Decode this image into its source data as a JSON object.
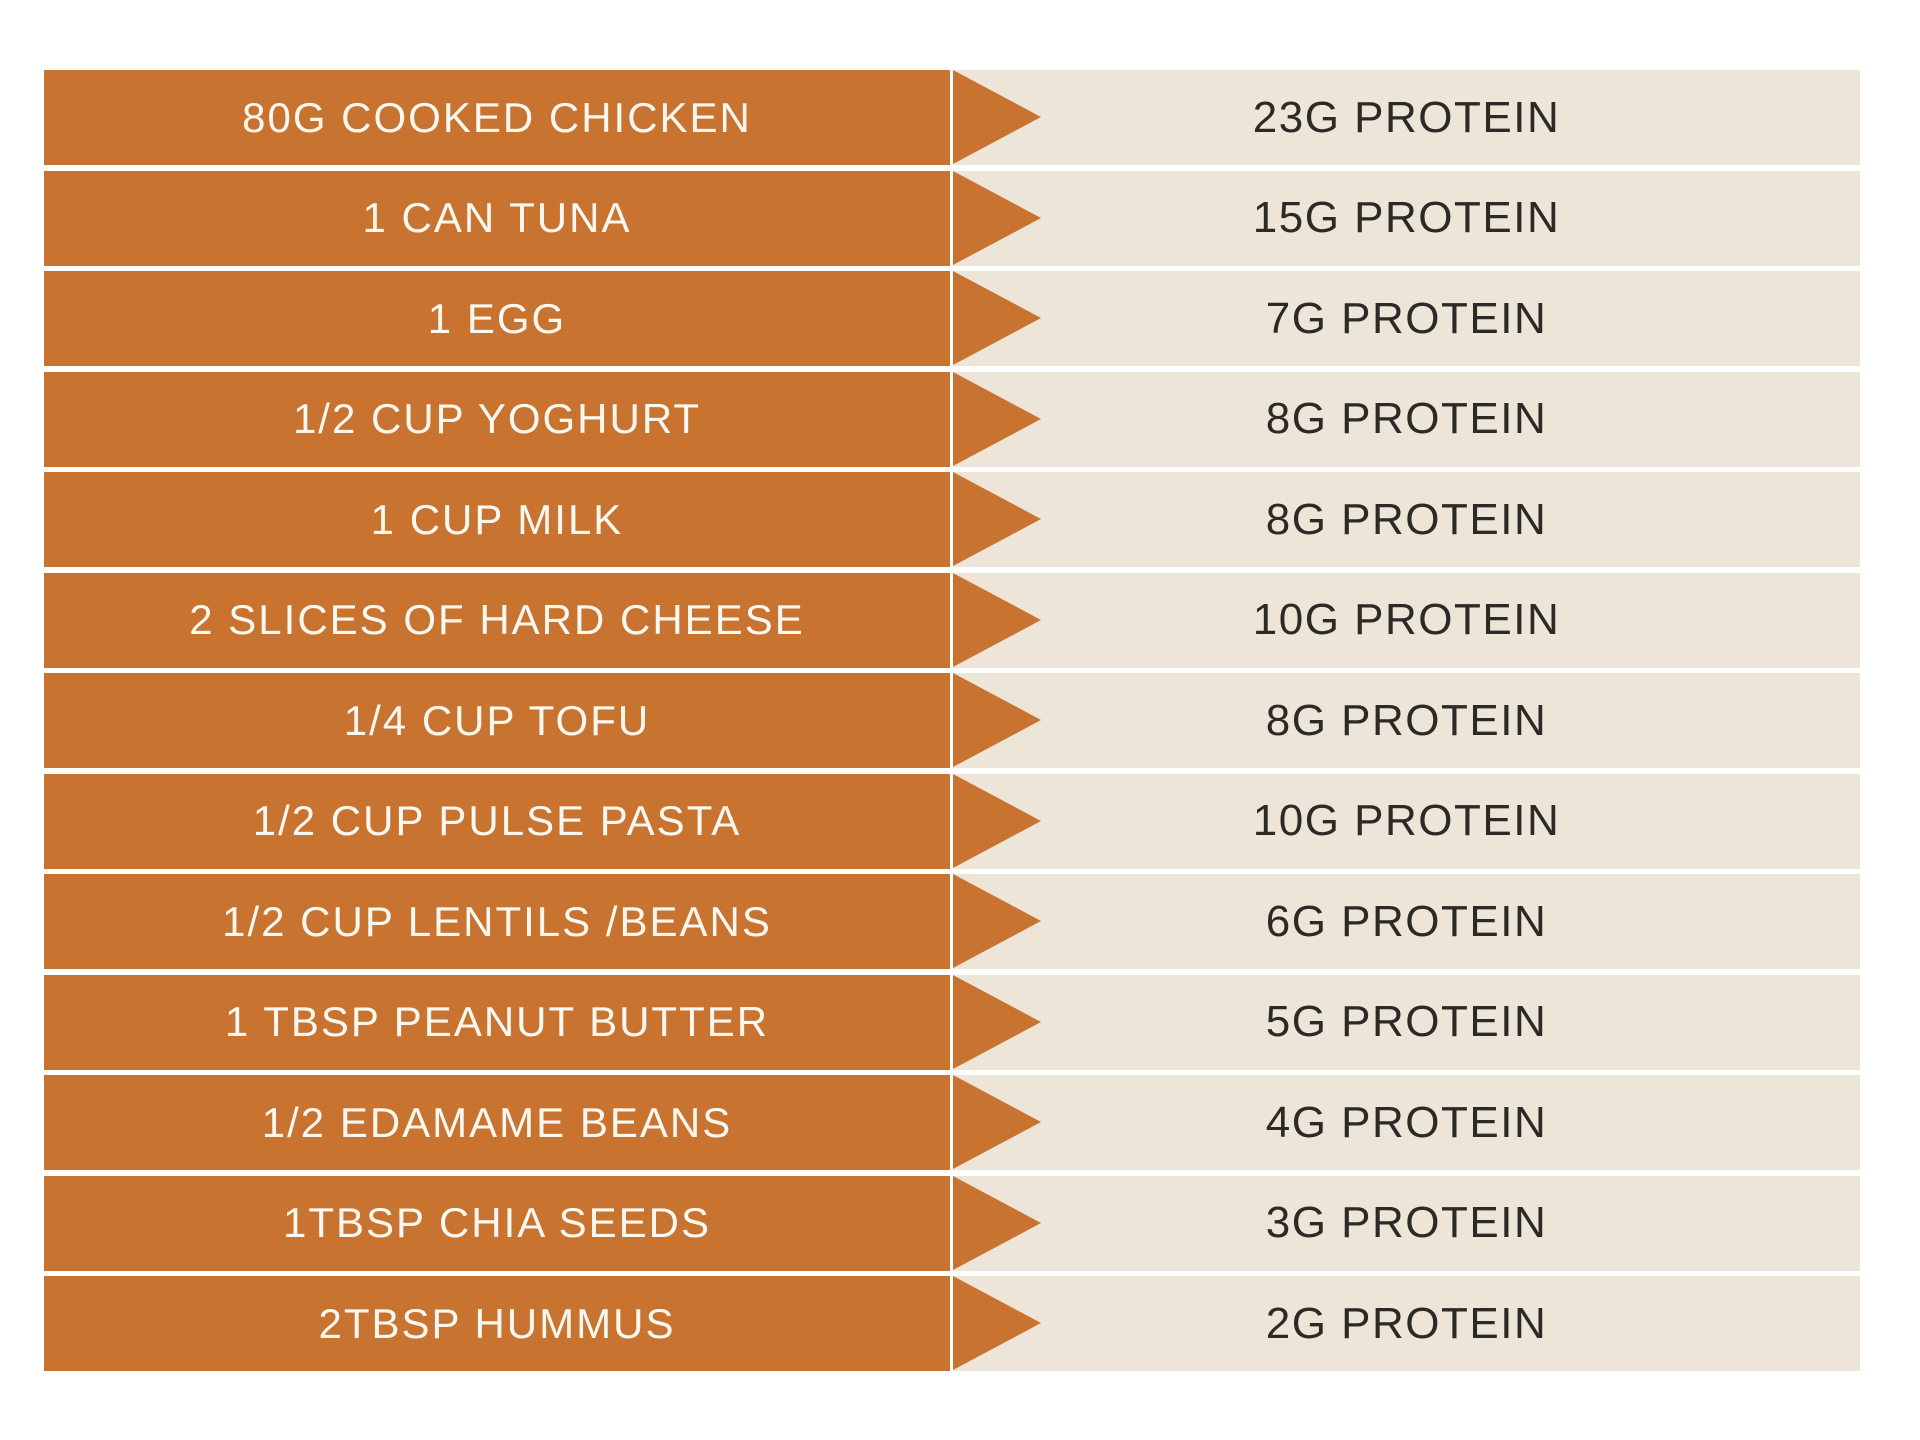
{
  "chart_data": {
    "type": "table",
    "title": "",
    "categories": [
      "80G COOKED CHICKEN",
      "1 CAN TUNA",
      "1 EGG",
      "1/2 CUP YOGHURT",
      "1 CUP MILK",
      "2 SLICES OF HARD CHEESE",
      "1/4 CUP TOFU",
      "1/2 CUP PULSE PASTA",
      "1/2 CUP LENTILS /BEANS",
      "1 TBSP PEANUT BUTTER",
      "1/2 EDAMAME BEANS",
      "1TBSP CHIA SEEDS",
      "2TBSP HUMMUS"
    ],
    "values": [
      23,
      15,
      7,
      8,
      8,
      10,
      8,
      10,
      6,
      5,
      4,
      3,
      2
    ],
    "value_unit": "G PROTEIN",
    "legend_position": "none",
    "grid": false
  },
  "table": {
    "rows": [
      {
        "food": "80G COOKED CHICKEN",
        "protein": "23G PROTEIN"
      },
      {
        "food": "1 CAN TUNA",
        "protein": "15G PROTEIN"
      },
      {
        "food": "1 EGG",
        "protein": "7G PROTEIN"
      },
      {
        "food": "1/2 CUP YOGHURT",
        "protein": "8G PROTEIN"
      },
      {
        "food": "1 CUP MILK",
        "protein": "8G PROTEIN"
      },
      {
        "food": "2 SLICES OF HARD CHEESE",
        "protein": "10G PROTEIN"
      },
      {
        "food": "1/4 CUP TOFU",
        "protein": "8G PROTEIN"
      },
      {
        "food": "1/2 CUP PULSE PASTA",
        "protein": "10G PROTEIN"
      },
      {
        "food": "1/2 CUP LENTILS /BEANS",
        "protein": "6G PROTEIN"
      },
      {
        "food": "1 TBSP PEANUT BUTTER",
        "protein": "5G PROTEIN"
      },
      {
        "food": "1/2 EDAMAME BEANS",
        "protein": "4G PROTEIN"
      },
      {
        "food": "1TBSP CHIA SEEDS",
        "protein": "3G PROTEIN"
      },
      {
        "food": "2TBSP HUMMUS",
        "protein": "2G PROTEIN"
      }
    ]
  },
  "icons": {
    "row_pointer": "right-arrow-icon"
  },
  "colors": {
    "orange": "#c8732f",
    "cream": "#ede6d8",
    "food_text": "#fbf8f1",
    "protein_text": "#2b2a26",
    "background": "#ffffff"
  }
}
